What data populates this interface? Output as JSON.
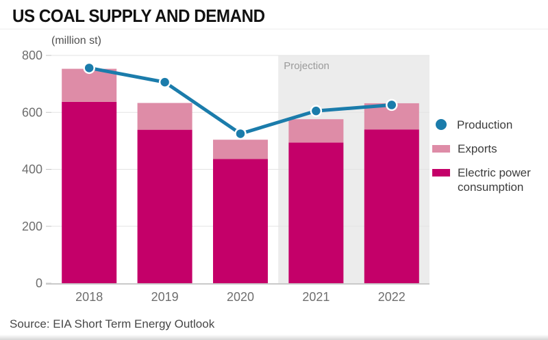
{
  "title": "US COAL SUPPLY AND DEMAND",
  "units_label": "(million st)",
  "source": "Source: EIA Short Term Energy Outlook",
  "projection_label": "Projection",
  "colors": {
    "production_line": "#1b7cab",
    "exports_bar": "#de8ca7",
    "consumption_bar": "#c40069",
    "projection_band": "#ececec",
    "gridline": "#e3e3e3",
    "baseline": "#c9c9c9",
    "tick_text": "#6e6e6e",
    "projection_text": "#9a9a9a"
  },
  "legend": [
    {
      "label": "Production",
      "marker": "dot",
      "color": "#1b7cab"
    },
    {
      "label": "Exports",
      "marker": "swatch",
      "color": "#de8ca7"
    },
    {
      "label": "Electric power consumption",
      "marker": "swatch",
      "color": "#c40069"
    }
  ],
  "chart_data": {
    "type": "bar",
    "subtype": "stacked-bars-with-line-overlay",
    "title": "US COAL SUPPLY AND DEMAND",
    "ylabel": "(million st)",
    "xlabel": "",
    "categories": [
      "2018",
      "2019",
      "2020",
      "2021",
      "2022"
    ],
    "series": [
      {
        "name": "Electric power consumption",
        "render": "bar-stack",
        "color": "#c40069",
        "values": [
          637,
          539,
          436,
          494,
          540
        ]
      },
      {
        "name": "Exports",
        "render": "bar-stack",
        "color": "#de8ca7",
        "values": [
          116,
          94,
          68,
          82,
          92
        ]
      },
      {
        "name": "Production",
        "render": "line",
        "color": "#1b7cab",
        "values": [
          756,
          706,
          525,
          605,
          626
        ]
      }
    ],
    "ylim": [
      0,
      800
    ],
    "yticks": [
      0,
      200,
      400,
      600,
      800
    ],
    "grid": true,
    "legend_position": "right",
    "projection_start_category": "2021",
    "projection_label": "Projection"
  }
}
